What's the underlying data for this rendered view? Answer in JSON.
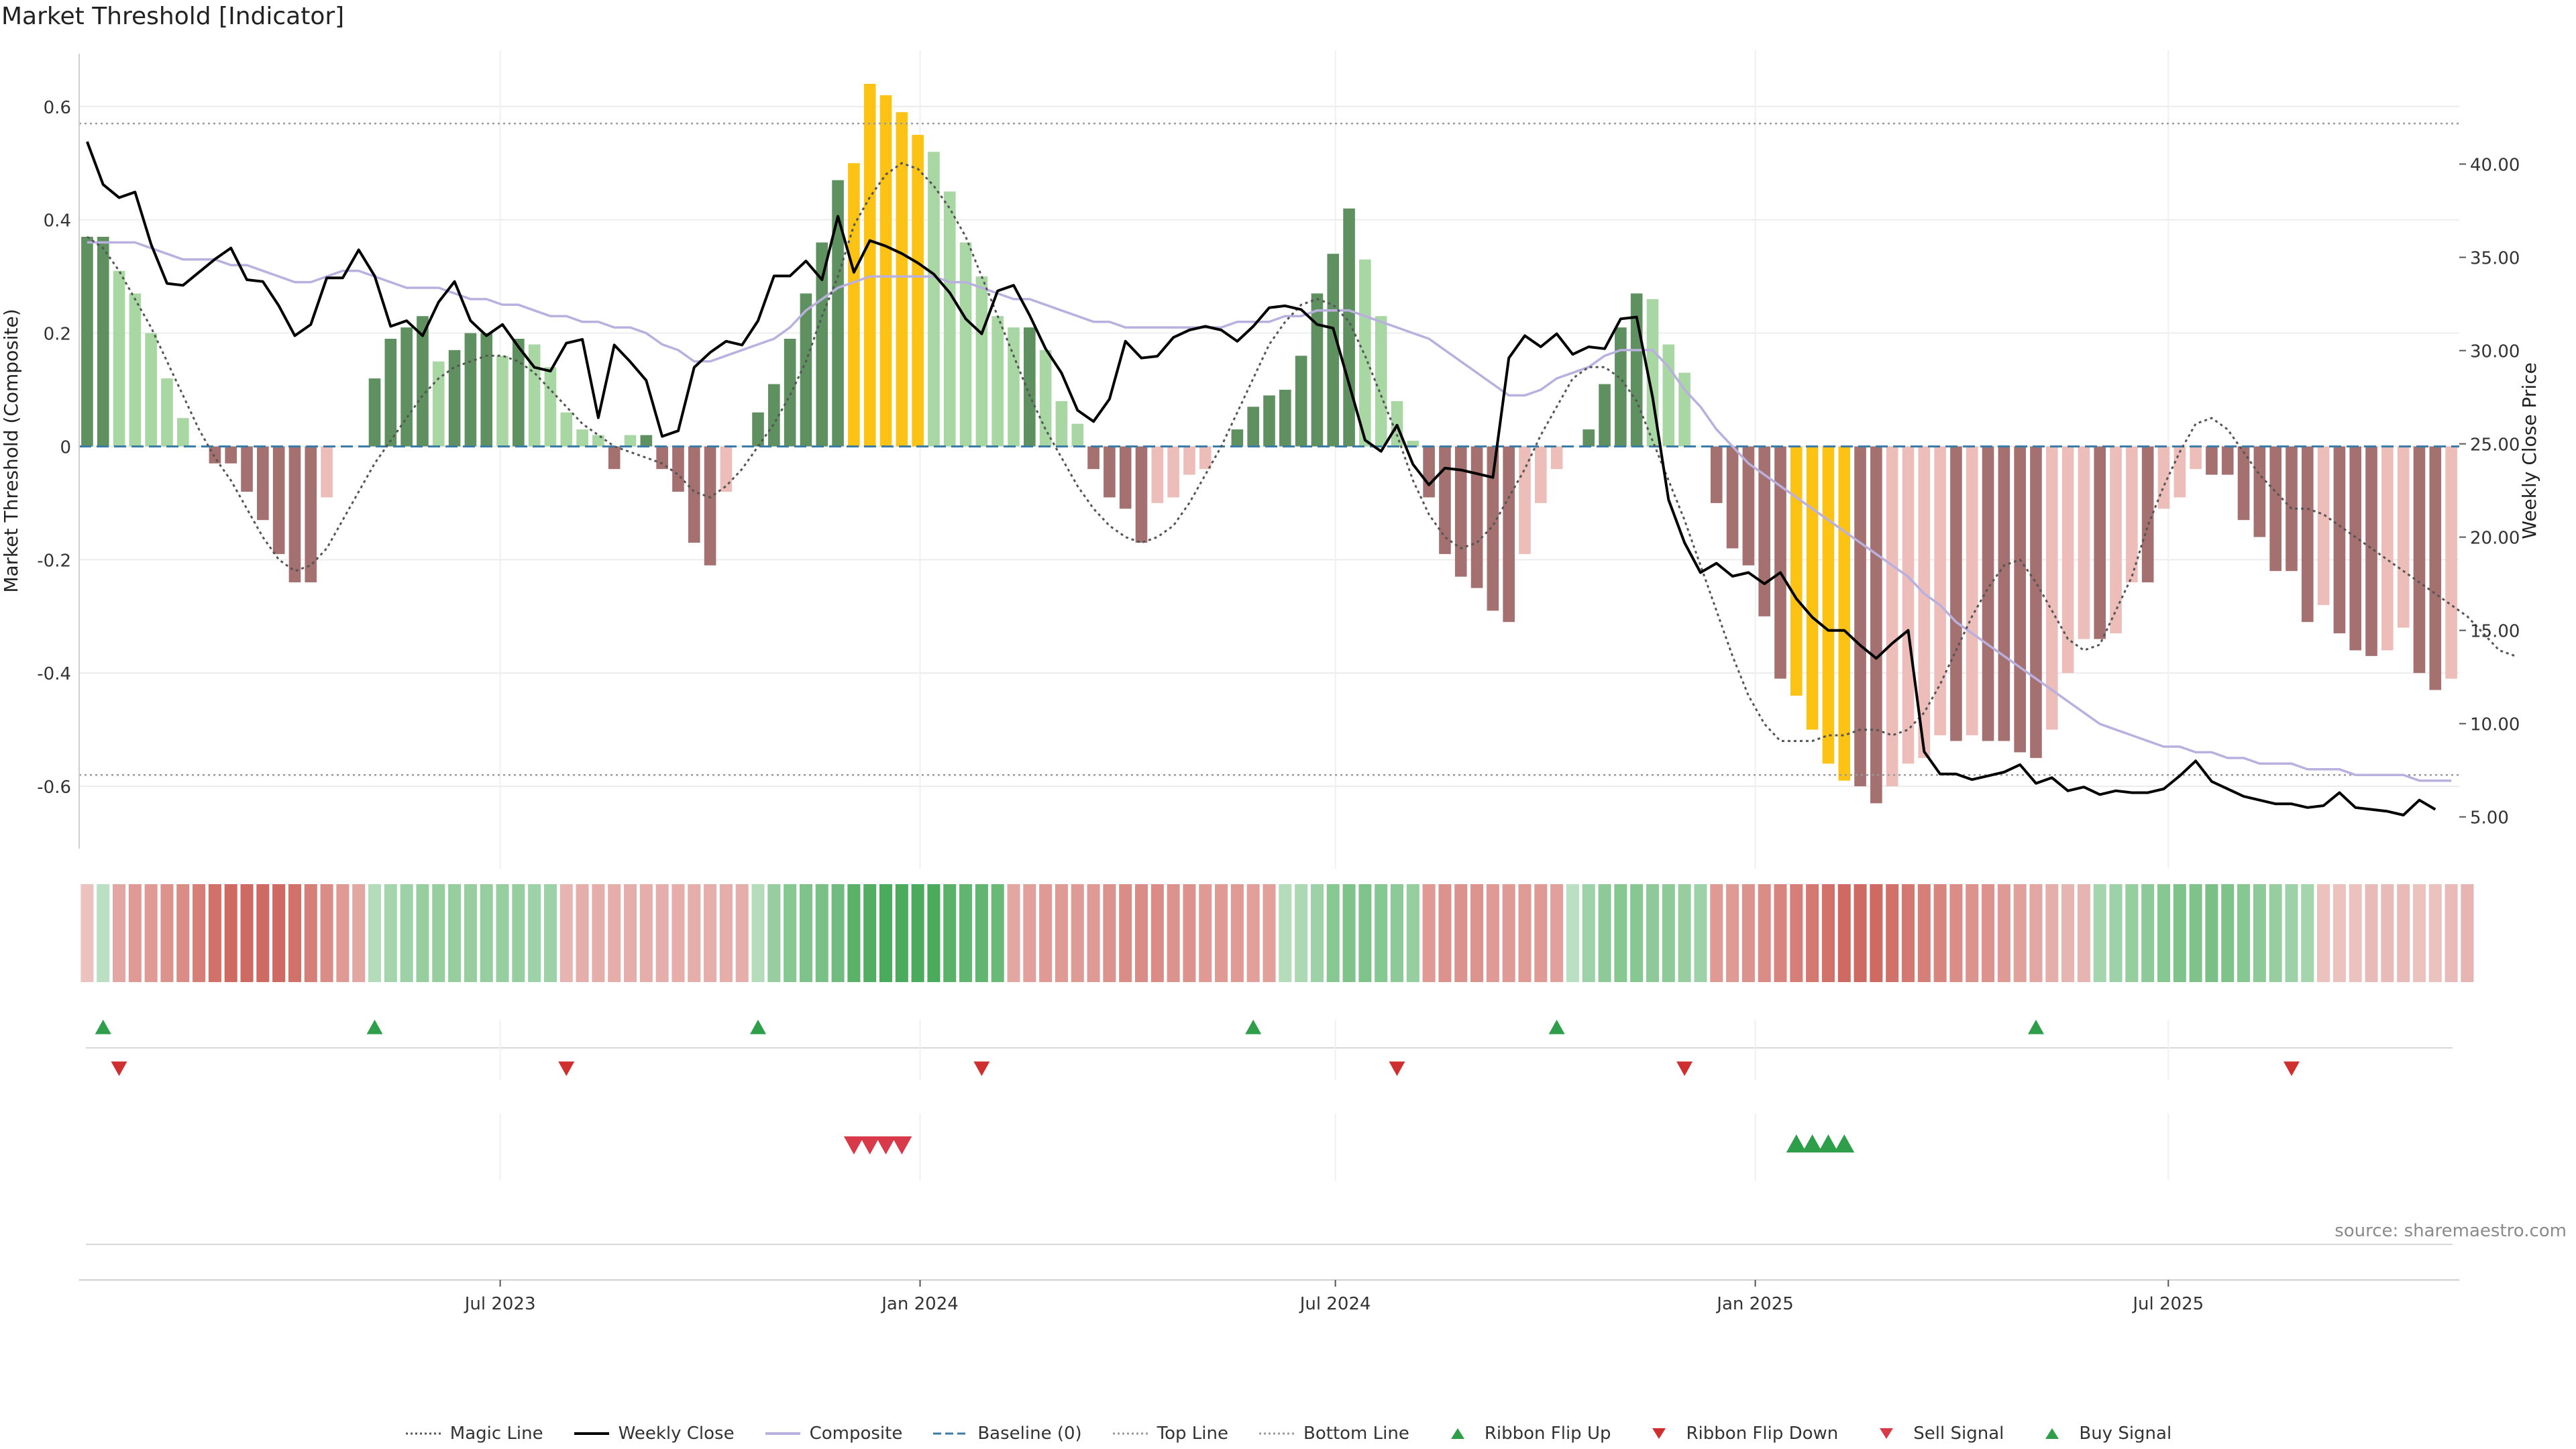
{
  "title": "Market Threshold [Indicator]",
  "source": "source: sharemaestro.com",
  "legend": [
    {
      "label": "Magic Line",
      "kind": "dotted",
      "color": "#555555"
    },
    {
      "label": "Weekly Close",
      "kind": "solid",
      "color": "#000000"
    },
    {
      "label": "Composite",
      "kind": "solid",
      "color": "#b9b0e0"
    },
    {
      "label": "Baseline (0)",
      "kind": "dashed",
      "color": "#3a7ca5"
    },
    {
      "label": "Top Line",
      "kind": "dotted",
      "color": "#999999"
    },
    {
      "label": "Bottom Line",
      "kind": "dotted",
      "color": "#999999"
    },
    {
      "label": "Ribbon Flip Up",
      "kind": "tri-up",
      "color": "#2e9e4a"
    },
    {
      "label": "Ribbon Flip Down",
      "kind": "tri-down",
      "color": "#cf2f2f"
    },
    {
      "label": "Sell Signal",
      "kind": "tri-down",
      "color": "#d93a4a"
    },
    {
      "label": "Buy Signal",
      "kind": "tri-up",
      "color": "#2e9e4a"
    }
  ],
  "colors": {
    "strong_up": "#5f9160",
    "weak_up": "#a9d7a3",
    "strong_down": "#a57070",
    "weak_down": "#ecbdb9",
    "extreme": "#fcc314",
    "baseline": "#3a7ca5",
    "composite": "#b9b0e0",
    "ribbon_pos": "#43a755",
    "ribbon_neg": "#c9564e"
  },
  "chart_data": {
    "type": "bar",
    "start_date": "2023-01-01",
    "interval_days": 7,
    "ylabel": "Market Threshold (Composite)",
    "y2label": "Weekly Close Price",
    "ylim": [
      -0.71,
      0.64
    ],
    "y2lim": [
      3.3,
      44.3
    ],
    "yticks": [
      "0.6",
      "0.4",
      "0.2",
      "0",
      "-0.2",
      "-0.4",
      "-0.6"
    ],
    "y2ticks": [
      "40.00",
      "35.00",
      "30.00",
      "25.00",
      "20.00",
      "15.00",
      "10.00",
      "5.00"
    ],
    "x_ticks": [
      {
        "label": "Jul 2023",
        "date": "2023-07-01"
      },
      {
        "label": "Jan 2024",
        "date": "2024-01-01"
      },
      {
        "label": "Jul 2024",
        "date": "2024-07-01"
      },
      {
        "label": "Jan 2025",
        "date": "2025-01-01"
      },
      {
        "label": "Jul 2025",
        "date": "2025-07-01"
      }
    ],
    "top_line": 0.57,
    "bottom_line": -0.58,
    "composite_bars": [
      0.37,
      0.37,
      0.31,
      0.27,
      0.2,
      0.12,
      0.05,
      0.0,
      -0.03,
      -0.03,
      -0.08,
      -0.13,
      -0.19,
      -0.24,
      -0.24,
      -0.09,
      0.0,
      0.0,
      0.12,
      0.19,
      0.21,
      0.23,
      0.15,
      0.17,
      0.2,
      0.2,
      0.16,
      0.19,
      0.18,
      0.14,
      0.06,
      0.03,
      0.02,
      -0.04,
      0.02,
      0.02,
      -0.04,
      -0.08,
      -0.17,
      -0.21,
      -0.08,
      0.0,
      0.06,
      0.11,
      0.19,
      0.27,
      0.36,
      0.47,
      0.5,
      0.64,
      0.62,
      0.59,
      0.55,
      0.52,
      0.45,
      0.36,
      0.3,
      0.23,
      0.21,
      0.21,
      0.17,
      0.08,
      0.04,
      -0.04,
      -0.09,
      -0.11,
      -0.17,
      -0.1,
      -0.09,
      -0.05,
      -0.04,
      0.0,
      0.03,
      0.07,
      0.09,
      0.1,
      0.16,
      0.27,
      0.34,
      0.42,
      0.33,
      0.23,
      0.08,
      0.01,
      -0.09,
      -0.19,
      -0.23,
      -0.25,
      -0.29,
      -0.31,
      -0.19,
      -0.1,
      -0.04,
      0.0,
      0.03,
      0.11,
      0.21,
      0.27,
      0.26,
      0.18,
      0.13,
      0.0,
      -0.1,
      -0.18,
      -0.21,
      -0.3,
      -0.41,
      -0.44,
      -0.5,
      -0.56,
      -0.59,
      -0.6,
      -0.63,
      -0.6,
      -0.56,
      -0.55,
      -0.51,
      -0.52,
      -0.51,
      -0.52,
      -0.52,
      -0.54,
      -0.55,
      -0.5,
      -0.4,
      -0.34,
      -0.34,
      -0.33,
      -0.24,
      -0.24,
      -0.11,
      -0.09,
      -0.04,
      -0.05,
      -0.05,
      -0.13,
      -0.16,
      -0.22,
      -0.22,
      -0.31,
      -0.28,
      -0.33,
      -0.36,
      -0.37,
      -0.36,
      -0.32,
      -0.4,
      -0.43,
      -0.41
    ],
    "bar_extreme": [
      48,
      49,
      50,
      51,
      52,
      107,
      108,
      109,
      110
    ],
    "weekly_close": [
      41.2,
      38.9,
      38.2,
      38.5,
      35.7,
      33.6,
      33.5,
      34.2,
      34.9,
      35.5,
      33.8,
      33.7,
      32.4,
      30.8,
      31.4,
      33.9,
      33.9,
      35.4,
      34.0,
      31.3,
      31.6,
      30.8,
      32.6,
      33.7,
      31.6,
      30.8,
      31.4,
      30.2,
      29.1,
      28.9,
      30.4,
      30.6,
      26.4,
      30.3,
      29.4,
      28.4,
      25.4,
      25.7,
      29.1,
      29.9,
      30.5,
      30.3,
      31.6,
      34.0,
      34.0,
      34.8,
      33.8,
      37.2,
      34.2,
      35.9,
      35.6,
      35.2,
      34.7,
      34.1,
      33.1,
      31.7,
      30.9,
      33.2,
      33.5,
      31.9,
      30.1,
      28.8,
      26.8,
      26.2,
      27.4,
      30.5,
      29.6,
      29.7,
      30.7,
      31.1,
      31.3,
      31.1,
      30.5,
      31.3,
      32.3,
      32.4,
      32.2,
      31.4,
      31.2,
      28.2,
      25.2,
      24.6,
      26.0,
      23.9,
      22.8,
      23.7,
      23.6,
      23.4,
      23.2,
      29.6,
      30.8,
      30.2,
      30.9,
      29.8,
      30.2,
      30.1,
      31.7,
      31.8,
      27.5,
      22.0,
      19.7,
      18.1,
      18.6,
      17.9,
      18.1,
      17.5,
      18.1,
      16.7,
      15.7,
      15.0,
      15.0,
      14.2,
      13.5,
      14.3,
      15.0,
      8.5,
      7.3,
      7.3,
      7.0,
      7.2,
      7.4,
      7.8,
      6.8,
      7.1,
      6.4,
      6.6,
      6.2,
      6.4,
      6.3,
      6.3,
      6.5,
      7.2,
      8.0,
      6.9,
      6.5,
      6.1,
      5.9,
      5.7,
      5.7,
      5.5,
      5.6,
      6.3,
      5.5,
      5.4,
      5.3,
      5.1,
      5.9,
      5.4
    ],
    "composite_line": [
      0.36,
      0.36,
      0.36,
      0.36,
      0.35,
      0.34,
      0.33,
      0.33,
      0.33,
      0.32,
      0.32,
      0.31,
      0.3,
      0.29,
      0.29,
      0.3,
      0.31,
      0.31,
      0.3,
      0.29,
      0.28,
      0.28,
      0.28,
      0.27,
      0.26,
      0.26,
      0.25,
      0.25,
      0.24,
      0.23,
      0.23,
      0.22,
      0.22,
      0.21,
      0.21,
      0.2,
      0.18,
      0.17,
      0.15,
      0.15,
      0.16,
      0.17,
      0.18,
      0.19,
      0.21,
      0.24,
      0.26,
      0.28,
      0.29,
      0.3,
      0.3,
      0.3,
      0.3,
      0.3,
      0.29,
      0.29,
      0.28,
      0.27,
      0.26,
      0.26,
      0.25,
      0.24,
      0.23,
      0.22,
      0.22,
      0.21,
      0.21,
      0.21,
      0.21,
      0.21,
      0.21,
      0.21,
      0.22,
      0.22,
      0.22,
      0.23,
      0.23,
      0.24,
      0.24,
      0.24,
      0.23,
      0.22,
      0.21,
      0.2,
      0.19,
      0.17,
      0.15,
      0.13,
      0.11,
      0.09,
      0.09,
      0.1,
      0.12,
      0.13,
      0.14,
      0.16,
      0.17,
      0.17,
      0.17,
      0.14,
      0.1,
      0.07,
      0.03,
      0.0,
      -0.03,
      -0.05,
      -0.07,
      -0.09,
      -0.11,
      -0.13,
      -0.15,
      -0.17,
      -0.19,
      -0.21,
      -0.23,
      -0.26,
      -0.28,
      -0.31,
      -0.33,
      -0.35,
      -0.37,
      -0.39,
      -0.41,
      -0.43,
      -0.45,
      -0.47,
      -0.49,
      -0.5,
      -0.51,
      -0.52,
      -0.53,
      -0.53,
      -0.54,
      -0.54,
      -0.55,
      -0.55,
      -0.56,
      -0.56,
      -0.56,
      -0.57,
      -0.57,
      -0.57,
      -0.58,
      -0.58,
      -0.58,
      -0.58,
      -0.59,
      -0.59,
      -0.59
    ],
    "magic_line": [
      0.37,
      0.35,
      0.31,
      0.26,
      0.21,
      0.15,
      0.09,
      0.03,
      -0.02,
      -0.06,
      -0.11,
      -0.16,
      -0.2,
      -0.22,
      -0.21,
      -0.18,
      -0.13,
      -0.08,
      -0.03,
      0.01,
      0.05,
      0.09,
      0.12,
      0.14,
      0.15,
      0.16,
      0.16,
      0.15,
      0.13,
      0.1,
      0.07,
      0.04,
      0.02,
      0.0,
      -0.01,
      -0.02,
      -0.03,
      -0.05,
      -0.08,
      -0.09,
      -0.07,
      -0.04,
      0.0,
      0.04,
      0.09,
      0.15,
      0.23,
      0.3,
      0.39,
      0.44,
      0.48,
      0.5,
      0.49,
      0.46,
      0.42,
      0.37,
      0.3,
      0.23,
      0.16,
      0.09,
      0.03,
      -0.02,
      -0.07,
      -0.11,
      -0.14,
      -0.16,
      -0.17,
      -0.16,
      -0.14,
      -0.1,
      -0.05,
      0.0,
      0.06,
      0.12,
      0.18,
      0.22,
      0.25,
      0.26,
      0.25,
      0.22,
      0.16,
      0.09,
      0.02,
      -0.06,
      -0.12,
      -0.16,
      -0.18,
      -0.17,
      -0.14,
      -0.09,
      -0.04,
      0.02,
      0.07,
      0.12,
      0.14,
      0.14,
      0.12,
      0.08,
      0.01,
      -0.06,
      -0.13,
      -0.21,
      -0.29,
      -0.37,
      -0.44,
      -0.49,
      -0.52,
      -0.52,
      -0.52,
      -0.51,
      -0.51,
      -0.5,
      -0.5,
      -0.51,
      -0.5,
      -0.47,
      -0.42,
      -0.36,
      -0.3,
      -0.25,
      -0.21,
      -0.2,
      -0.24,
      -0.29,
      -0.34,
      -0.36,
      -0.35,
      -0.29,
      -0.23,
      -0.14,
      -0.07,
      -0.01,
      0.04,
      0.05,
      0.03,
      -0.01,
      -0.05,
      -0.08,
      -0.11,
      -0.11,
      -0.12,
      -0.14,
      -0.16,
      -0.18,
      -0.2,
      -0.22,
      -0.24,
      -0.26,
      -0.28,
      -0.3,
      -0.33,
      -0.36,
      -0.37
    ],
    "ribbon": [
      -0.2,
      0.2,
      -0.4,
      -0.5,
      -0.5,
      -0.55,
      -0.6,
      -0.7,
      -0.8,
      -0.85,
      -0.85,
      -0.85,
      -0.85,
      -0.8,
      -0.7,
      -0.6,
      -0.5,
      -0.4,
      0.25,
      0.35,
      0.4,
      0.45,
      0.45,
      0.45,
      0.45,
      0.45,
      0.45,
      0.45,
      0.4,
      0.4,
      -0.3,
      -0.35,
      -0.35,
      -0.35,
      -0.35,
      -0.35,
      -0.35,
      -0.35,
      -0.35,
      -0.35,
      -0.35,
      -0.35,
      0.25,
      0.45,
      0.55,
      0.6,
      0.65,
      0.7,
      0.85,
      0.9,
      0.95,
      0.95,
      0.95,
      0.95,
      0.85,
      0.8,
      0.8,
      0.75,
      -0.4,
      -0.45,
      -0.5,
      -0.5,
      -0.5,
      -0.5,
      -0.55,
      -0.6,
      -0.6,
      -0.6,
      -0.55,
      -0.55,
      -0.5,
      -0.5,
      -0.5,
      -0.45,
      -0.45,
      0.25,
      0.3,
      0.4,
      0.55,
      0.6,
      0.6,
      0.55,
      0.5,
      0.45,
      -0.5,
      -0.55,
      -0.55,
      -0.55,
      -0.5,
      -0.5,
      -0.5,
      -0.5,
      -0.45,
      0.2,
      0.4,
      0.5,
      0.55,
      0.55,
      0.5,
      0.5,
      0.45,
      0.4,
      -0.5,
      -0.5,
      -0.55,
      -0.6,
      -0.65,
      -0.7,
      -0.75,
      -0.8,
      -0.85,
      -0.85,
      -0.85,
      -0.8,
      -0.75,
      -0.7,
      -0.65,
      -0.6,
      -0.55,
      -0.55,
      -0.5,
      -0.45,
      -0.4,
      -0.35,
      -0.3,
      -0.3,
      0.35,
      0.4,
      0.45,
      0.5,
      0.55,
      0.6,
      0.6,
      0.65,
      0.6,
      0.55,
      0.5,
      0.45,
      0.4,
      0.35,
      -0.2,
      -0.2,
      -0.2,
      -0.25,
      -0.25,
      -0.25,
      -0.2,
      -0.2,
      -0.25,
      -0.3
    ],
    "ribbon_flip_up": [
      1,
      18,
      42,
      73,
      92,
      122
    ],
    "ribbon_flip_down": [
      2,
      30,
      56,
      82,
      100,
      138
    ],
    "sell_signals": [
      48,
      49,
      50,
      51
    ],
    "buy_signals": [
      107,
      108,
      109,
      110
    ]
  }
}
